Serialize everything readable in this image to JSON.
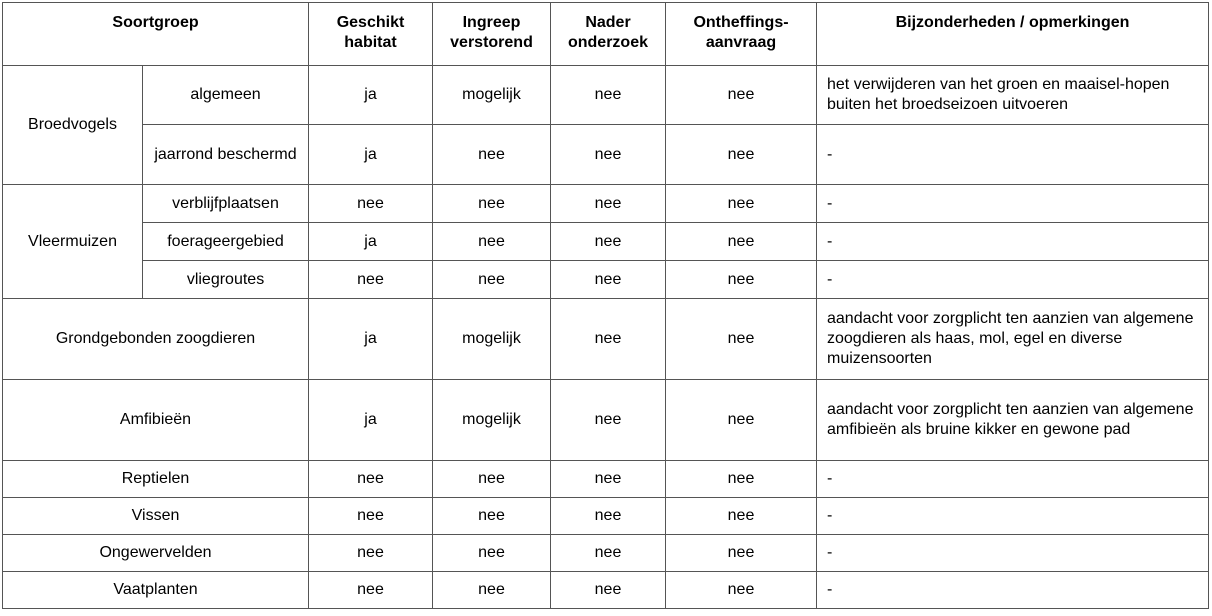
{
  "headers": [
    "Soortgroep",
    "Geschikt habitat",
    "Ingreep verstorend",
    "Nader onderzoek",
    "Ontheffings-aanvraag",
    "Bijzonderheden / opmerkingen"
  ],
  "header_lines": [
    [
      "Soortgroep"
    ],
    [
      "Geschikt",
      "habitat"
    ],
    [
      "Ingreep",
      "verstorend"
    ],
    [
      "Nader",
      "onderzoek"
    ],
    [
      "Ontheffings-",
      "aanvraag"
    ],
    [
      "Bijzonderheden / opmerkingen"
    ]
  ],
  "groups": [
    {
      "name": "Broedvogels",
      "rows": [
        {
          "sub": "algemeen",
          "habitat": "ja",
          "ingreep": "mogelijk",
          "onderzoek": "nee",
          "ontheffing": "nee",
          "opmerking": "het verwijderen van het groen en maaisel-hopen buiten het broedseizoen uitvoeren"
        },
        {
          "sub": "jaarrond beschermd",
          "habitat": "ja",
          "ingreep": "nee",
          "onderzoek": "nee",
          "ontheffing": "nee",
          "opmerking": "-"
        }
      ]
    },
    {
      "name": "Vleermuizen",
      "rows": [
        {
          "sub": "verblijfplaatsen",
          "habitat": "nee",
          "ingreep": "nee",
          "onderzoek": "nee",
          "ontheffing": "nee",
          "opmerking": "-"
        },
        {
          "sub": "foerageergebied",
          "habitat": "ja",
          "ingreep": "nee",
          "onderzoek": "nee",
          "ontheffing": "nee",
          "opmerking": "-"
        },
        {
          "sub": "vliegroutes",
          "habitat": "nee",
          "ingreep": "nee",
          "onderzoek": "nee",
          "ontheffing": "nee",
          "opmerking": "-"
        }
      ]
    },
    {
      "name": "Grondgebonden zoogdieren",
      "rows": [
        {
          "habitat": "ja",
          "ingreep": "mogelijk",
          "onderzoek": "nee",
          "ontheffing": "nee",
          "opmerking": "aandacht voor zorgplicht ten aanzien van algemene zoogdieren als haas, mol, egel en diverse muizensoorten"
        }
      ]
    },
    {
      "name": "Amfibieën",
      "rows": [
        {
          "habitat": "ja",
          "ingreep": "mogelijk",
          "onderzoek": "nee",
          "ontheffing": "nee",
          "opmerking": "aandacht voor zorgplicht ten aanzien van algemene amfibieën als bruine kikker en gewone pad"
        }
      ]
    },
    {
      "name": "Reptielen",
      "rows": [
        {
          "habitat": "nee",
          "ingreep": "nee",
          "onderzoek": "nee",
          "ontheffing": "nee",
          "opmerking": "-"
        }
      ]
    },
    {
      "name": "Vissen",
      "rows": [
        {
          "habitat": "nee",
          "ingreep": "nee",
          "onderzoek": "nee",
          "ontheffing": "nee",
          "opmerking": "-"
        }
      ]
    },
    {
      "name": "Ongewervelden",
      "rows": [
        {
          "habitat": "nee",
          "ingreep": "nee",
          "onderzoek": "nee",
          "ontheffing": "nee",
          "opmerking": "-"
        }
      ]
    },
    {
      "name": "Vaatplanten",
      "rows": [
        {
          "habitat": "nee",
          "ingreep": "nee",
          "onderzoek": "nee",
          "ontheffing": "nee",
          "opmerking": "-"
        }
      ]
    }
  ]
}
